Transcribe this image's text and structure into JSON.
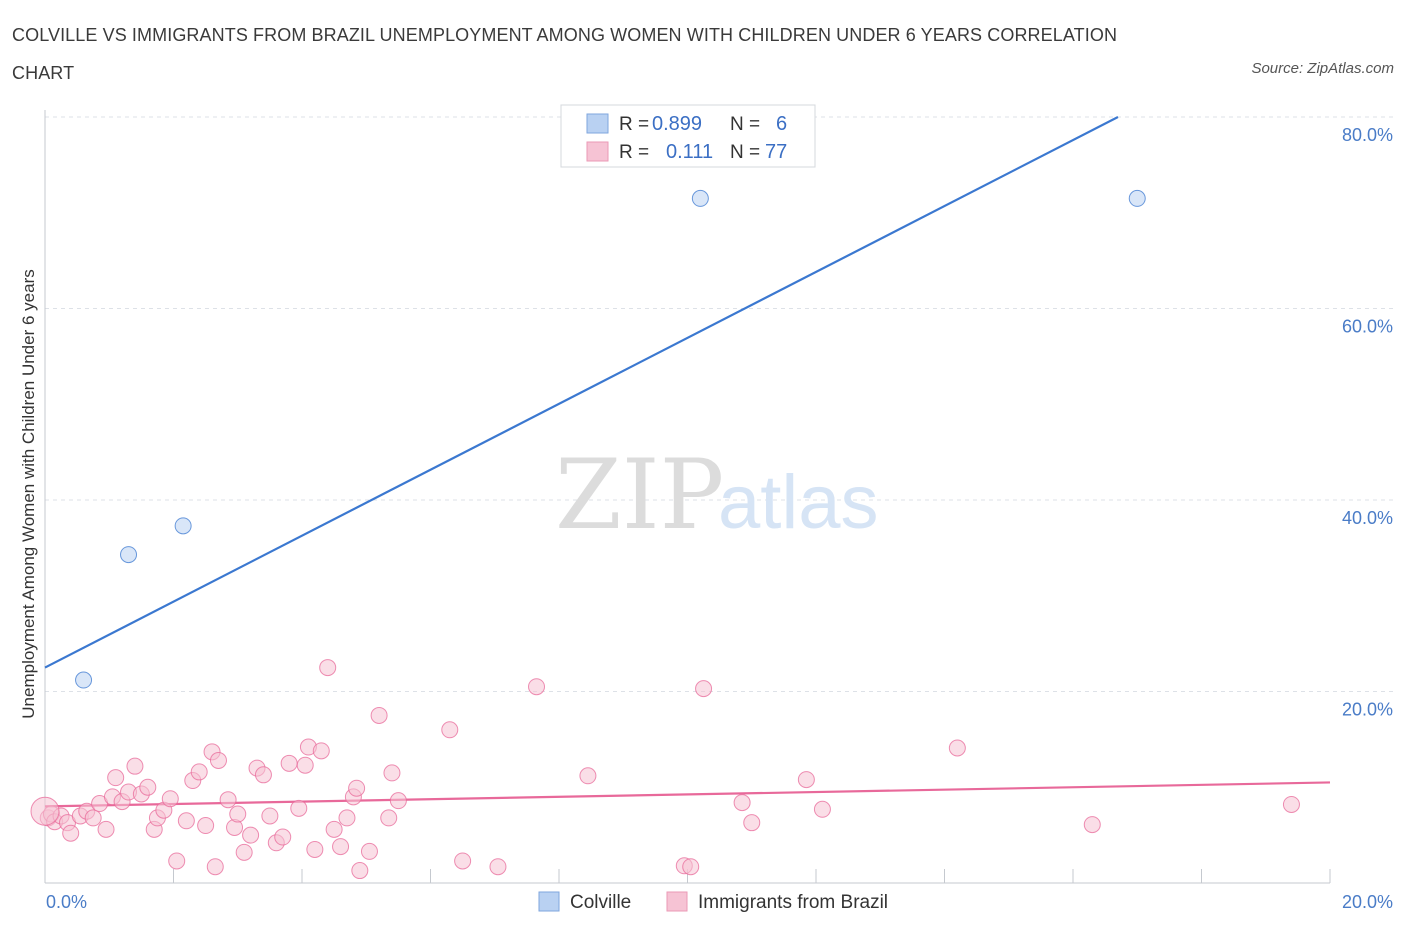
{
  "title": "COLVILLE VS IMMIGRANTS FROM BRAZIL UNEMPLOYMENT AMONG WOMEN WITH CHILDREN UNDER 6 YEARS CORRELATION CHART",
  "source": "Source: ZipAtlas.com",
  "watermark": {
    "zip": "ZIP",
    "atlas": "atlas"
  },
  "colors": {
    "colville": "#3b78d0",
    "colville_fill": "#b9d1f2",
    "brazil": "#e8699a",
    "brazil_fill": "#f6c3d4",
    "tick": "#4a7cc7",
    "grid": "#dde1e7"
  },
  "legend": {
    "r_label": "R =",
    "n_label": "N =",
    "rows": [
      {
        "r": "0.899",
        "n": "6"
      },
      {
        "r": "0.111",
        "n": "77"
      }
    ]
  },
  "chart_data": {
    "type": "scatter",
    "title": "COLVILLE VS IMMIGRANTS FROM BRAZIL UNEMPLOYMENT AMONG WOMEN WITH CHILDREN UNDER 6 YEARS CORRELATION CHART",
    "xlabel": "",
    "ylabel": "Unemployment Among Women with Children Under 6 years",
    "xlim": [
      0,
      20
    ],
    "ylim": [
      0,
      80
    ],
    "x_ticks": [
      "0.0%",
      "20.0%"
    ],
    "y_ticks": [
      {
        "value": 20,
        "label": "20.0%"
      },
      {
        "value": 40,
        "label": "40.0%"
      },
      {
        "value": 60,
        "label": "60.0%"
      },
      {
        "value": 80,
        "label": "80.0%"
      }
    ],
    "grid": true,
    "legend_position": "top-center",
    "series": [
      {
        "name": "Colville",
        "color": "#3b78d0",
        "points": [
          [
            0.6,
            21.2
          ],
          [
            1.3,
            34.3
          ],
          [
            2.15,
            37.3
          ],
          [
            10.2,
            71.5
          ],
          [
            17.0,
            71.5
          ]
        ],
        "trend": {
          "x": [
            0,
            16.7
          ],
          "y": [
            22.5,
            80.0
          ]
        }
      },
      {
        "name": "Immigrants from Brazil",
        "color": "#e8699a",
        "points": [
          [
            0.05,
            6.8
          ],
          [
            0.1,
            7.2
          ],
          [
            0.15,
            6.4
          ],
          [
            0.25,
            7.0
          ],
          [
            0.35,
            6.3
          ],
          [
            0.4,
            5.2
          ],
          [
            0.55,
            7.0
          ],
          [
            0.65,
            7.5
          ],
          [
            0.75,
            6.8
          ],
          [
            0.85,
            8.3
          ],
          [
            0.95,
            5.6
          ],
          [
            1.05,
            9.0
          ],
          [
            1.1,
            11.0
          ],
          [
            1.2,
            8.5
          ],
          [
            1.3,
            9.5
          ],
          [
            1.4,
            12.2
          ],
          [
            1.5,
            9.3
          ],
          [
            1.6,
            10.0
          ],
          [
            1.7,
            5.6
          ],
          [
            1.75,
            6.8
          ],
          [
            1.85,
            7.6
          ],
          [
            1.95,
            8.8
          ],
          [
            2.05,
            2.3
          ],
          [
            2.2,
            6.5
          ],
          [
            2.3,
            10.7
          ],
          [
            2.4,
            11.6
          ],
          [
            2.5,
            6.0
          ],
          [
            2.6,
            13.7
          ],
          [
            2.65,
            1.7
          ],
          [
            2.7,
            12.8
          ],
          [
            2.85,
            8.7
          ],
          [
            2.95,
            5.8
          ],
          [
            3.0,
            7.2
          ],
          [
            3.1,
            3.2
          ],
          [
            3.2,
            5.0
          ],
          [
            3.3,
            12.0
          ],
          [
            3.4,
            11.3
          ],
          [
            3.5,
            7.0
          ],
          [
            3.6,
            4.2
          ],
          [
            3.7,
            4.8
          ],
          [
            3.8,
            12.5
          ],
          [
            3.95,
            7.8
          ],
          [
            4.05,
            12.3
          ],
          [
            4.1,
            14.2
          ],
          [
            4.2,
            3.5
          ],
          [
            4.3,
            13.8
          ],
          [
            4.4,
            22.5
          ],
          [
            4.5,
            5.6
          ],
          [
            4.6,
            3.8
          ],
          [
            4.7,
            6.8
          ],
          [
            4.8,
            9.0
          ],
          [
            4.85,
            9.9
          ],
          [
            4.9,
            1.3
          ],
          [
            5.05,
            3.3
          ],
          [
            5.2,
            17.5
          ],
          [
            5.35,
            6.8
          ],
          [
            5.4,
            11.5
          ],
          [
            5.5,
            8.6
          ],
          [
            6.3,
            16.0
          ],
          [
            6.5,
            2.3
          ],
          [
            7.05,
            1.7
          ],
          [
            7.65,
            20.5
          ],
          [
            8.45,
            11.2
          ],
          [
            9.95,
            1.8
          ],
          [
            10.05,
            1.7
          ],
          [
            10.25,
            20.3
          ],
          [
            10.85,
            8.4
          ],
          [
            11.0,
            6.3
          ],
          [
            11.85,
            10.8
          ],
          [
            12.1,
            7.7
          ],
          [
            14.2,
            14.1
          ],
          [
            16.3,
            6.1
          ],
          [
            19.4,
            8.2
          ],
          [
            0.0,
            7.5
          ]
        ],
        "trend": {
          "x": [
            0,
            20
          ],
          "y": [
            8.0,
            10.5
          ]
        }
      }
    ]
  },
  "bottom_legend": [
    {
      "label": "Colville"
    },
    {
      "label": "Immigrants from Brazil"
    }
  ]
}
